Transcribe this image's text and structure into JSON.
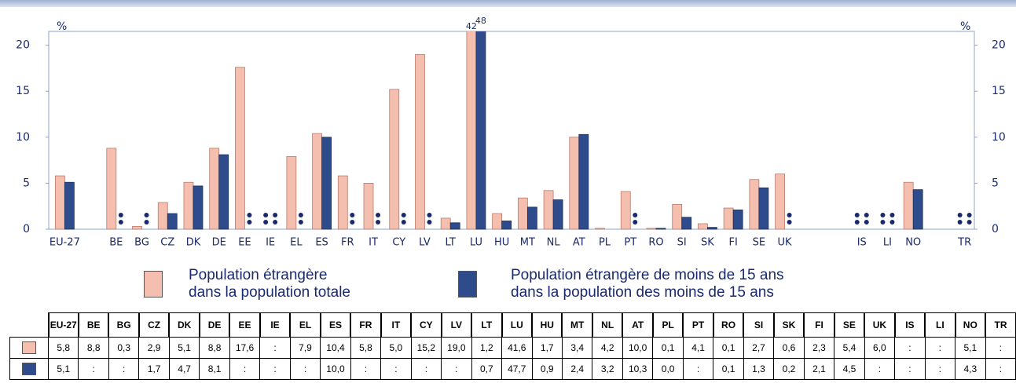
{
  "chart_data": {
    "type": "bar",
    "y_unit_left": "%",
    "y_unit_right": "%",
    "categories": [
      "EU-27",
      "BE",
      "BG",
      "CZ",
      "DK",
      "DE",
      "EE",
      "IE",
      "EL",
      "ES",
      "FR",
      "IT",
      "CY",
      "LV",
      "LT",
      "LU",
      "HU",
      "MT",
      "NL",
      "AT",
      "PL",
      "PT",
      "RO",
      "SI",
      "SK",
      "FI",
      "SE",
      "UK",
      "IS",
      "LI",
      "NO",
      "TR"
    ],
    "series": [
      {
        "name": "Population étrangère\ndans la population totale",
        "color": "#f4bfae",
        "values": [
          5.8,
          8.8,
          0.3,
          2.9,
          5.1,
          8.8,
          17.6,
          null,
          7.9,
          10.4,
          5.8,
          5.0,
          15.2,
          19.0,
          1.2,
          41.6,
          1.7,
          3.4,
          4.2,
          10.0,
          0.1,
          4.1,
          0.1,
          2.7,
          0.6,
          2.3,
          5.4,
          6.0,
          null,
          null,
          5.1,
          null
        ],
        "value_labels": [
          "5,8",
          "8,8",
          "0,3",
          "2,9",
          "5,1",
          "8,8",
          "17,6",
          ":",
          "7,9",
          "10,4",
          "5,8",
          "5,0",
          "15,2",
          "19,0",
          "1,2",
          "41,6",
          "1,7",
          "3,4",
          "4,2",
          "10,0",
          "0,1",
          "4,1",
          "0,1",
          "2,7",
          "0,6",
          "2,3",
          "5,4",
          "6,0",
          ":",
          ":",
          "5,1",
          ":"
        ]
      },
      {
        "name": "Population étrangère de moins de 15 ans\ndans la population des moins de 15 ans",
        "color": "#2e4b8c",
        "values": [
          5.1,
          null,
          null,
          1.7,
          4.7,
          8.1,
          null,
          null,
          null,
          10.0,
          null,
          null,
          null,
          null,
          0.7,
          47.7,
          0.9,
          2.4,
          3.2,
          10.3,
          0.0,
          null,
          0.1,
          1.3,
          0.2,
          2.1,
          4.5,
          null,
          null,
          null,
          4.3,
          null
        ],
        "value_labels": [
          "5,1",
          ":",
          ":",
          "1,7",
          "4,7",
          "8,1",
          ":",
          ":",
          ":",
          "10,0",
          ":",
          ":",
          ":",
          ":",
          "0,7",
          "47,7",
          "0,9",
          "2,4",
          "3,2",
          "10,3",
          "0,0",
          ":",
          "0,1",
          "1,3",
          "0,2",
          "2,1",
          "4,5",
          ":",
          ":",
          ":",
          "4,3",
          ":"
        ]
      }
    ],
    "annotations": [
      "42",
      "48"
    ],
    "ylim": [
      0,
      21.5
    ],
    "yticks": [
      0,
      5,
      10,
      15,
      20
    ]
  }
}
